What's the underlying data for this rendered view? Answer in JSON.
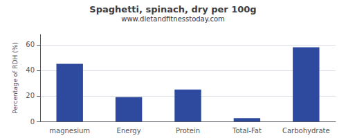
{
  "chart_data": {
    "type": "bar",
    "title": "Spaghetti, spinach, dry per 100g",
    "subtitle": "www.dietandfitnesstoday.com",
    "categories": [
      "magnesium",
      "Energy",
      "Protein",
      "Total-Fat",
      "Carbohydrate"
    ],
    "values": [
      45,
      19,
      25,
      2.5,
      58
    ],
    "color": "#2e4a9e",
    "ylabel": "Percentage of RDH (%)",
    "ylim": [
      0,
      68
    ],
    "yticks": [
      0,
      20,
      40,
      60
    ],
    "grid": true
  }
}
